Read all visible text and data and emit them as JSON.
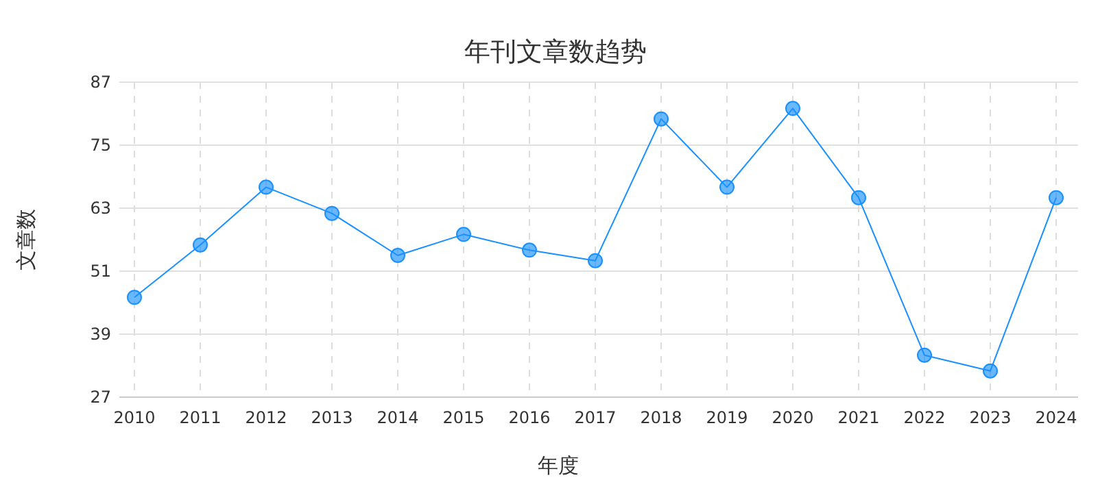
{
  "chart_data": {
    "type": "line",
    "title": "年刊文章数趋势",
    "xlabel": "年度",
    "ylabel": "文章数",
    "categories": [
      "2010",
      "2011",
      "2012",
      "2013",
      "2014",
      "2015",
      "2016",
      "2017",
      "2018",
      "2019",
      "2020",
      "2021",
      "2022",
      "2023",
      "2024"
    ],
    "series": [
      {
        "color": "#1890ff",
        "values": [
          46,
          56,
          67,
          62,
          54,
          58,
          55,
          53,
          80,
          67,
          82,
          65,
          35,
          32,
          65
        ]
      }
    ],
    "ylim": [
      27,
      87
    ],
    "yticks": [
      27,
      39,
      51,
      63,
      75,
      87
    ],
    "grid": true,
    "marker": "circle",
    "line_style": "solid"
  }
}
